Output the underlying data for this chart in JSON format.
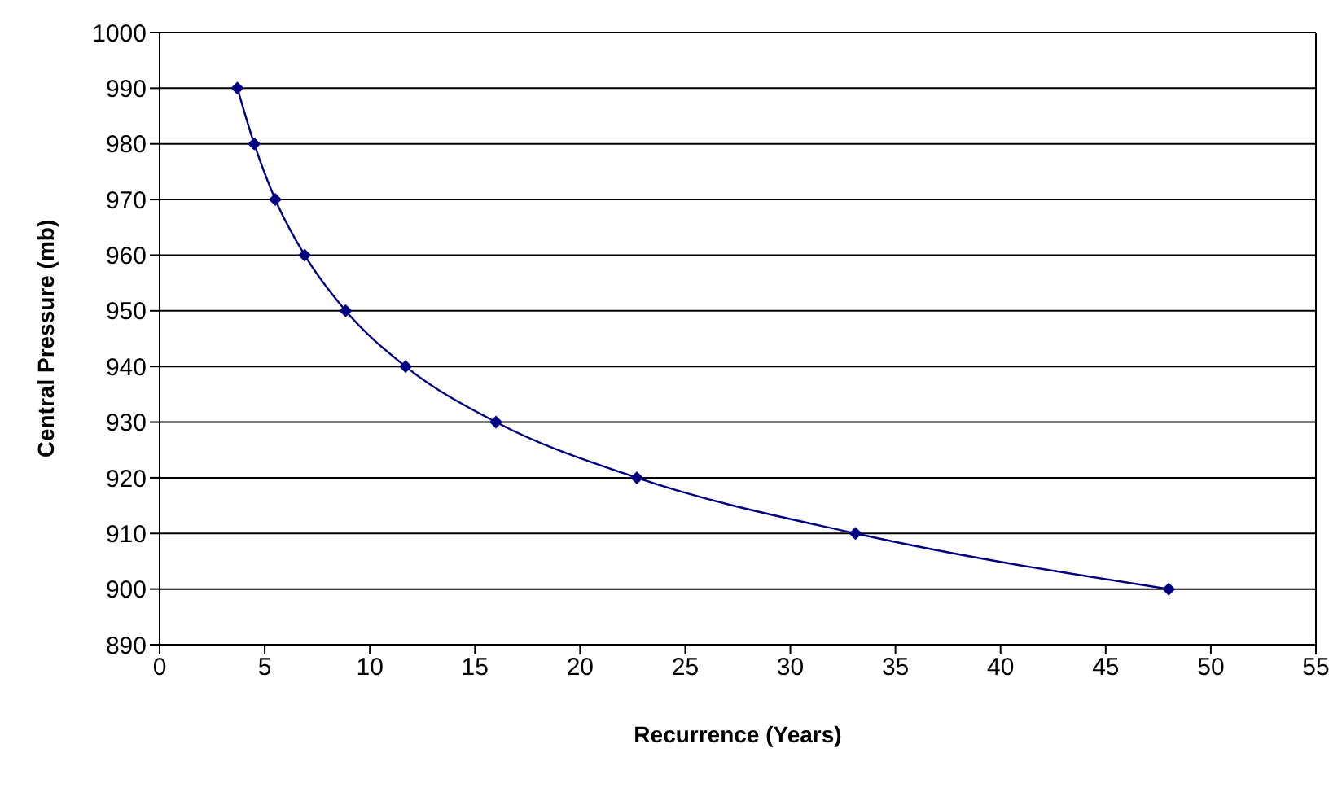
{
  "chart_data": {
    "type": "line",
    "xlabel": "Recurrence (Years)",
    "ylabel": "Central Pressure (mb)",
    "x": [
      3.7,
      4.5,
      5.5,
      6.9,
      8.85,
      11.7,
      16.0,
      22.7,
      33.1,
      48.0
    ],
    "series": [
      {
        "color": "#000080",
        "values": [
          990,
          980,
          970,
          960,
          950,
          940,
          930,
          920,
          910,
          900
        ]
      }
    ],
    "xlim": [
      0,
      55
    ],
    "xticks": [
      0,
      5,
      10,
      15,
      20,
      25,
      30,
      35,
      40,
      45,
      50,
      55
    ],
    "ylim": [
      890,
      1000
    ],
    "yticks": [
      890,
      900,
      910,
      920,
      930,
      940,
      950,
      960,
      970,
      980,
      990,
      1000
    ],
    "grid": "y",
    "marker": "diamond",
    "line_style": "solid"
  }
}
